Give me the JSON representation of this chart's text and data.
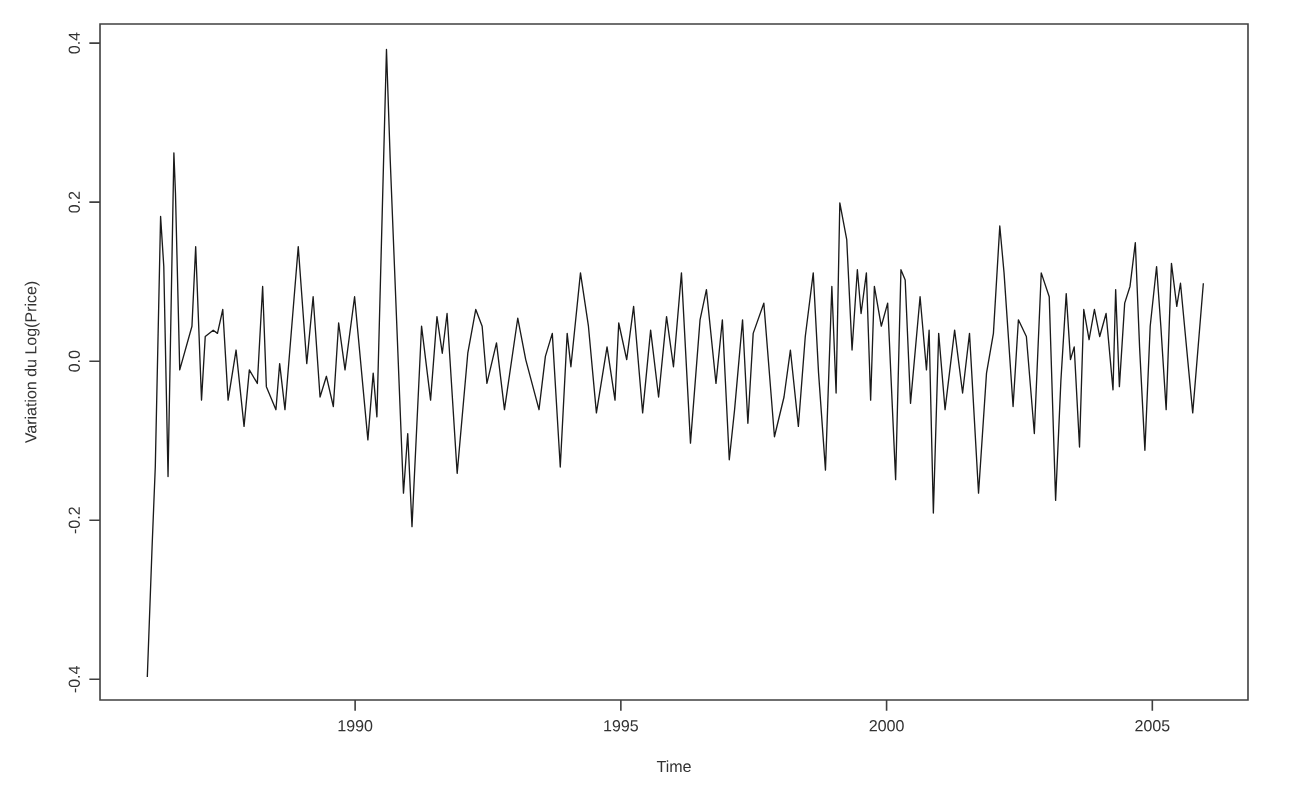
{
  "chart_data": {
    "type": "line",
    "xlabel": "Time",
    "ylabel": "Variation du Log(Price)",
    "xlim": [
      1985.2,
      2006.8
    ],
    "ylim": [
      -0.426,
      0.424
    ],
    "xticks": [
      1990,
      1995,
      2000,
      2005
    ],
    "yticks": [
      -0.4,
      -0.2,
      {
        "value": 0,
        "label": "0.0"
      },
      0.2,
      0.4
    ],
    "grid": false,
    "legend": false,
    "marker": "none",
    "line_style": "solid",
    "series": [
      {
        "color": "#1a1a1a",
        "x": [
          1986.09,
          1986.18,
          1986.24,
          1986.34,
          1986.4,
          1986.48,
          1986.59,
          1986.62,
          1986.7,
          1986.93,
          1987.0,
          1987.11,
          1987.18,
          1987.33,
          1987.41,
          1987.51,
          1987.61,
          1987.76,
          1987.91,
          1988.01,
          1988.16,
          1988.26,
          1988.33,
          1988.51,
          1988.58,
          1988.68,
          1988.93,
          1989.09,
          1989.21,
          1989.34,
          1989.46,
          1989.59,
          1989.69,
          1989.81,
          1989.99,
          1990.24,
          1990.34,
          1990.41,
          1990.59,
          1990.66,
          1990.91,
          1990.99,
          1991.07,
          1991.25,
          1991.42,
          1991.54,
          1991.64,
          1991.73,
          1991.92,
          1992.12,
          1992.27,
          1992.39,
          1992.48,
          1992.66,
          1992.81,
          1993.06,
          1993.21,
          1993.46,
          1993.58,
          1993.71,
          1993.86,
          1993.99,
          1994.06,
          1994.24,
          1994.39,
          1994.54,
          1994.74,
          1994.89,
          1994.96,
          1995.11,
          1995.24,
          1995.41,
          1995.56,
          1995.71,
          1995.86,
          1995.99,
          1996.14,
          1996.31,
          1996.49,
          1996.61,
          1996.79,
          1996.91,
          1997.04,
          1997.14,
          1997.29,
          1997.39,
          1997.49,
          1997.69,
          1997.89,
          1998.07,
          1998.19,
          1998.34,
          1998.47,
          1998.62,
          1998.72,
          1998.85,
          1998.97,
          1999.05,
          1999.12,
          1999.25,
          1999.35,
          1999.45,
          1999.52,
          1999.62,
          1999.7,
          1999.77,
          1999.9,
          2000.02,
          2000.17,
          2000.27,
          2000.35,
          2000.45,
          2000.63,
          2000.75,
          2000.8,
          2000.88,
          2000.98,
          2001.1,
          2001.28,
          2001.43,
          2001.56,
          2001.73,
          2001.88,
          2002.01,
          2002.13,
          2002.21,
          2002.38,
          2002.48,
          2002.63,
          2002.78,
          2002.91,
          2003.06,
          2003.18,
          2003.28,
          2003.38,
          2003.46,
          2003.53,
          2003.63,
          2003.71,
          2003.81,
          2003.91,
          2004.01,
          2004.13,
          2004.26,
          2004.31,
          2004.38,
          2004.48,
          2004.58,
          2004.68,
          2004.76,
          2004.86,
          2004.96,
          2005.08,
          2005.16,
          2005.26,
          2005.36,
          2005.46,
          2005.53,
          2005.76,
          2005.96
        ],
        "values": [
          -0.397,
          -0.233,
          -0.133,
          0.182,
          0.119,
          -0.145,
          0.262,
          0.211,
          -0.011,
          0.044,
          0.144,
          -0.049,
          0.031,
          0.039,
          0.035,
          0.065,
          -0.049,
          0.014,
          -0.082,
          -0.011,
          -0.028,
          0.094,
          -0.032,
          -0.061,
          -0.003,
          -0.061,
          0.144,
          -0.003,
          0.081,
          -0.045,
          -0.019,
          -0.057,
          0.048,
          -0.011,
          0.081,
          -0.099,
          -0.015,
          -0.07,
          0.392,
          0.254,
          -0.166,
          -0.091,
          -0.208,
          0.044,
          -0.049,
          0.056,
          0.01,
          0.06,
          -0.141,
          0.01,
          0.065,
          0.044,
          -0.028,
          0.023,
          -0.061,
          0.054,
          0.002,
          -0.061,
          0.006,
          0.035,
          -0.133,
          0.035,
          -0.007,
          0.111,
          0.044,
          -0.065,
          0.018,
          -0.049,
          0.048,
          0.002,
          0.069,
          -0.065,
          0.039,
          -0.045,
          0.056,
          -0.007,
          0.111,
          -0.103,
          0.052,
          0.09,
          -0.028,
          0.052,
          -0.124,
          -0.061,
          0.052,
          -0.078,
          0.035,
          0.073,
          -0.095,
          -0.045,
          0.014,
          -0.082,
          0.031,
          0.111,
          -0.015,
          -0.137,
          0.094,
          -0.04,
          0.199,
          0.153,
          0.014,
          0.115,
          0.06,
          0.111,
          -0.049,
          0.094,
          0.044,
          0.073,
          -0.149,
          0.115,
          0.102,
          -0.053,
          0.081,
          -0.011,
          0.039,
          -0.191,
          0.035,
          -0.061,
          0.039,
          -0.04,
          0.035,
          -0.166,
          -0.015,
          0.035,
          0.17,
          0.111,
          -0.057,
          0.052,
          0.031,
          -0.091,
          0.111,
          0.081,
          -0.175,
          -0.024,
          0.085,
          0.002,
          0.018,
          -0.108,
          0.065,
          0.027,
          0.065,
          0.031,
          0.06,
          -0.036,
          0.09,
          -0.032,
          0.073,
          0.094,
          0.149,
          0.018,
          -0.112,
          0.044,
          0.119,
          0.044,
          -0.061,
          0.123,
          0.069,
          0.098,
          -0.065,
          0.098
        ]
      }
    ]
  }
}
